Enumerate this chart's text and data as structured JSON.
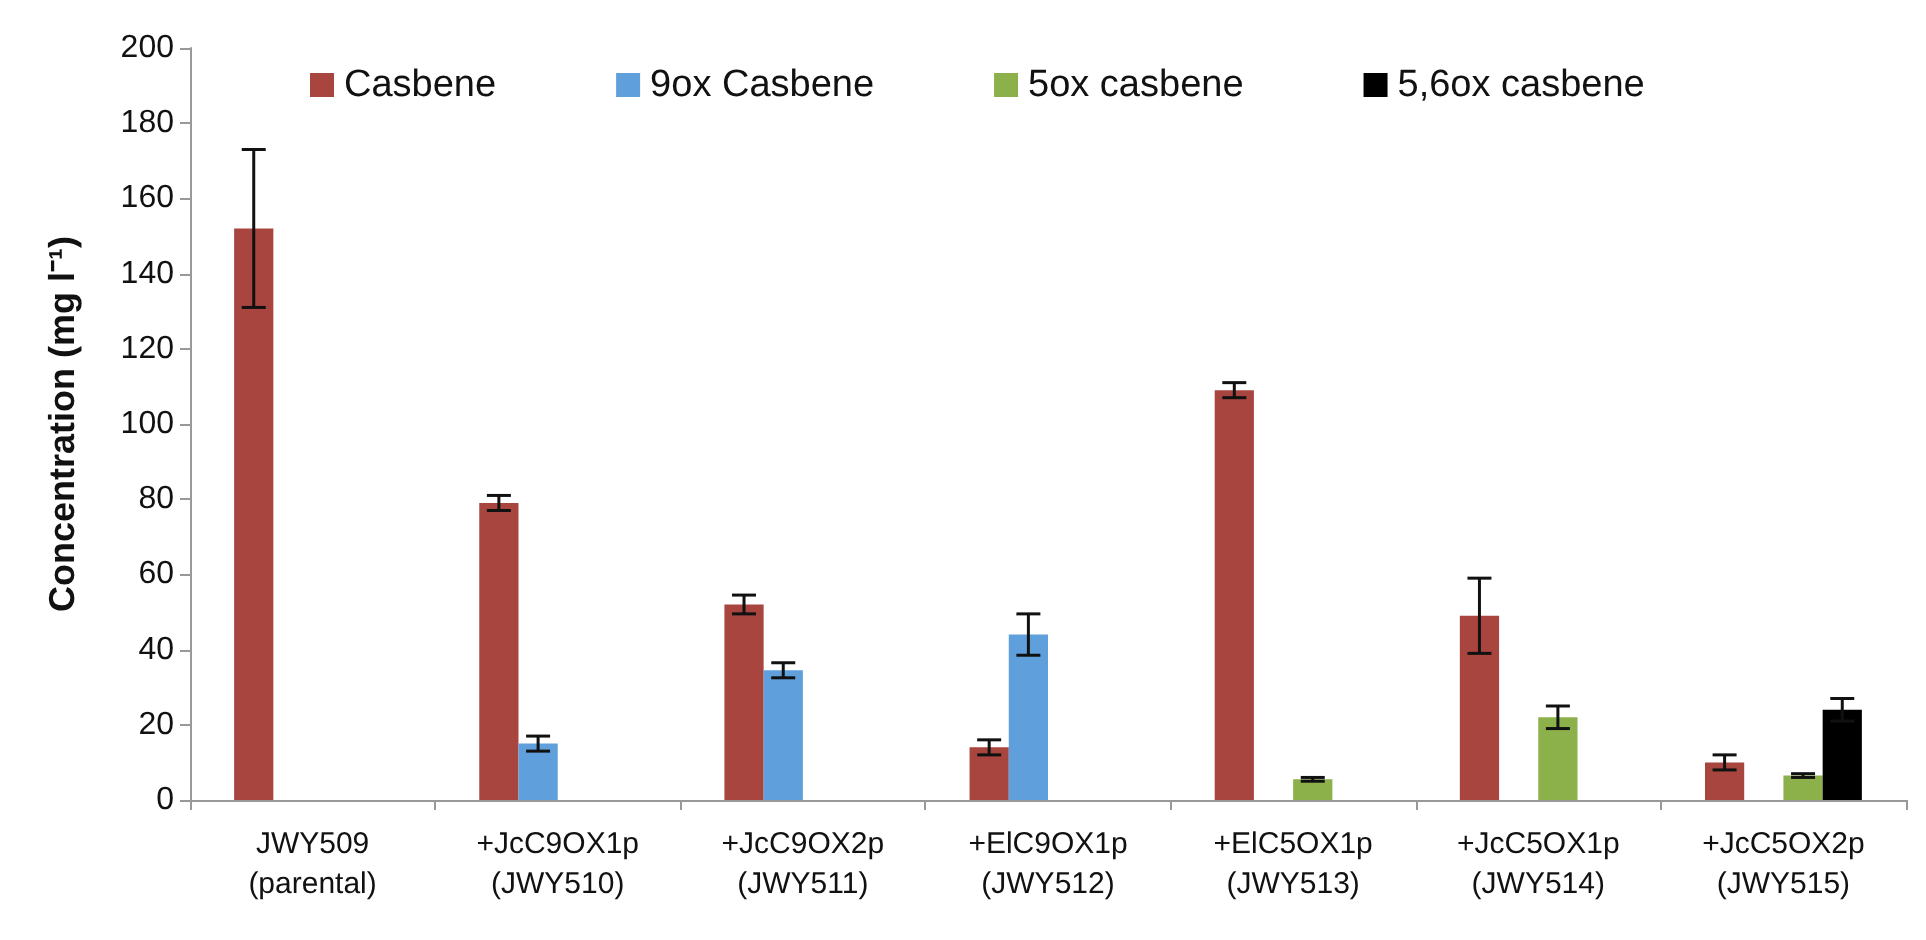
{
  "chart_data": {
    "type": "bar",
    "ylabel": "Concentration (mg l⁻¹)",
    "categories": [
      "JWY509\n(parental)",
      "+JcC9OX1p\n(JWY510)",
      "+JcC9OX2p\n(JWY511)",
      "+ElC9OX1p\n(JWY512)",
      "+ElC5OX1p\n(JWY513)",
      "+JcC5OX1p\n(JWY514)",
      "+JcC5OX2p\n(JWY515)"
    ],
    "series": [
      {
        "name": "Casbene",
        "color": "#a8453f",
        "values": [
          152,
          79,
          52,
          14,
          109,
          49,
          10
        ],
        "errors": [
          21,
          2,
          2.5,
          2,
          2,
          10,
          2
        ]
      },
      {
        "name": "9ox Casbene",
        "color": "#5fa0dc",
        "values": [
          0,
          15,
          34.5,
          44,
          0,
          0,
          0
        ],
        "errors": [
          null,
          2,
          2,
          5.5,
          null,
          null,
          null
        ]
      },
      {
        "name": "5ox casbene",
        "color": "#8cb04a",
        "values": [
          0,
          0,
          0,
          0,
          5.5,
          22,
          6.5
        ],
        "errors": [
          null,
          null,
          null,
          null,
          0.5,
          3,
          0.5
        ]
      },
      {
        "name": "5,6ox casbene",
        "color": "#000000",
        "values": [
          0,
          0,
          0,
          0,
          0,
          0,
          24
        ],
        "errors": [
          null,
          null,
          null,
          null,
          null,
          null,
          3
        ]
      }
    ],
    "ylim": [
      0,
      200
    ],
    "yticks": [
      0,
      20,
      40,
      60,
      80,
      100,
      120,
      140,
      160,
      180,
      200
    ],
    "grid": false,
    "legend": "top"
  }
}
